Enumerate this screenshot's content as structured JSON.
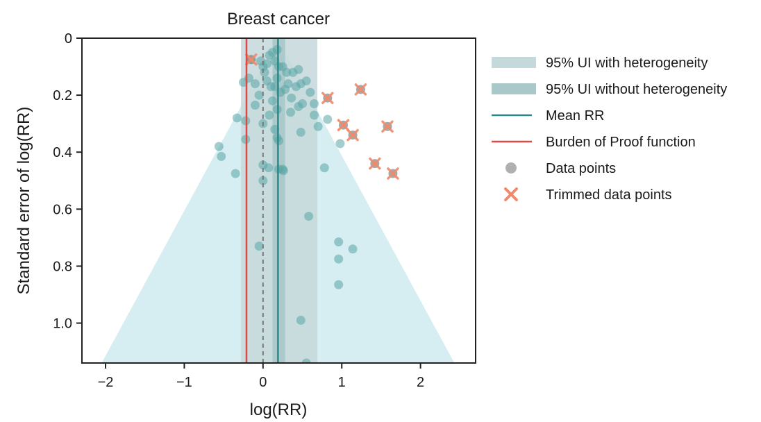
{
  "colors": {
    "funnel": "#d6eef2",
    "ui_het": "#c5d8da",
    "ui_nohet": "#a8c8ca",
    "mean_line": "#2a8a8a",
    "bop_line": "#e04848",
    "zero_line": "#777777",
    "point": "#5aa6a6",
    "point_dark": "#4a6a70",
    "trim_x": "#f08a6a",
    "axis": "#222222"
  },
  "chart_data": {
    "type": "scatter",
    "title": "Breast cancer",
    "xlabel": "log(RR)",
    "ylabel": "Standard error of log(RR)",
    "xlim": [
      -2.3,
      2.7
    ],
    "ylim": [
      0,
      1.14
    ],
    "y_inverted": true,
    "x_ticks": [
      -2,
      -1,
      0,
      1,
      2
    ],
    "x_tick_labels": [
      "−2",
      "−1",
      "0",
      "1",
      "2"
    ],
    "y_ticks": [
      0,
      0.2,
      0.4,
      0.6,
      0.8,
      1.0
    ],
    "y_tick_labels": [
      "0",
      "0.2",
      "0.4",
      "0.6",
      "0.8",
      "1.0"
    ],
    "mean_rr": 0.19,
    "burden_of_proof": -0.21,
    "ui_with_heterogeneity": [
      -0.28,
      0.69
    ],
    "ui_without_heterogeneity": [
      0.12,
      0.28
    ],
    "funnel_base_half_width_at_max_se": 2.24,
    "data_points": [
      [
        -0.03,
        0.08
      ],
      [
        0.0,
        0.1
      ],
      [
        0.02,
        0.12
      ],
      [
        0.05,
        0.09
      ],
      [
        0.08,
        0.06
      ],
      [
        0.12,
        0.05
      ],
      [
        0.15,
        0.08
      ],
      [
        0.18,
        0.04
      ],
      [
        0.2,
        0.1
      ],
      [
        0.25,
        0.1
      ],
      [
        0.3,
        0.12
      ],
      [
        0.38,
        0.12
      ],
      [
        0.45,
        0.11
      ],
      [
        -0.25,
        0.155
      ],
      [
        -0.18,
        0.14
      ],
      [
        -0.1,
        0.16
      ],
      [
        0.05,
        0.15
      ],
      [
        0.1,
        0.17
      ],
      [
        0.15,
        0.17
      ],
      [
        0.18,
        0.14
      ],
      [
        0.22,
        0.19
      ],
      [
        0.28,
        0.18
      ],
      [
        0.32,
        0.16
      ],
      [
        0.36,
        0.21
      ],
      [
        0.42,
        0.17
      ],
      [
        0.48,
        0.16
      ],
      [
        0.55,
        0.15
      ],
      [
        0.6,
        0.19
      ],
      [
        -0.05,
        0.2
      ],
      [
        0.12,
        0.22
      ],
      [
        -0.1,
        0.235
      ],
      [
        0.08,
        0.27
      ],
      [
        0.18,
        0.25
      ],
      [
        0.35,
        0.26
      ],
      [
        0.45,
        0.24
      ],
      [
        0.5,
        0.23
      ],
      [
        0.65,
        0.23
      ],
      [
        0.65,
        0.27
      ],
      [
        0.7,
        0.31
      ],
      [
        0.82,
        0.285
      ],
      [
        -0.33,
        0.28
      ],
      [
        -0.22,
        0.29
      ],
      [
        0.0,
        0.3
      ],
      [
        0.15,
        0.32
      ],
      [
        0.18,
        0.35
      ],
      [
        0.2,
        0.36
      ],
      [
        0.48,
        0.33
      ],
      [
        0.98,
        0.37
      ],
      [
        -0.56,
        0.38
      ],
      [
        -0.53,
        0.415
      ],
      [
        -0.22,
        0.355
      ],
      [
        0.0,
        0.445
      ],
      [
        0.07,
        0.455
      ],
      [
        0.2,
        0.46
      ],
      [
        0.25,
        0.46
      ],
      [
        0.26,
        0.465
      ],
      [
        0.78,
        0.455
      ],
      [
        -0.35,
        0.475
      ],
      [
        0.0,
        0.5
      ],
      [
        0.58,
        0.625
      ],
      [
        0.96,
        0.715
      ],
      [
        -0.05,
        0.73
      ],
      [
        1.14,
        0.74
      ],
      [
        0.96,
        0.775
      ],
      [
        0.96,
        0.865
      ],
      [
        0.48,
        0.99
      ],
      [
        0.55,
        1.14
      ]
    ],
    "trimmed_points": [
      [
        -0.15,
        0.075
      ],
      [
        0.82,
        0.21
      ],
      [
        1.24,
        0.18
      ],
      [
        1.02,
        0.305
      ],
      [
        1.14,
        0.34
      ],
      [
        1.58,
        0.31
      ],
      [
        1.42,
        0.44
      ],
      [
        1.65,
        0.475
      ]
    ],
    "legend": [
      {
        "label": "95% UI with heterogeneity",
        "swatch": "ui_het_band"
      },
      {
        "label": "95% UI without heterogeneity",
        "swatch": "ui_nohet_band"
      },
      {
        "label": "Mean RR",
        "swatch": "mean_line"
      },
      {
        "label": "Burden of Proof function",
        "swatch": "bop_line"
      },
      {
        "label": "Data points",
        "swatch": "point"
      },
      {
        "label": "Trimmed data points",
        "swatch": "trim_x"
      }
    ]
  }
}
